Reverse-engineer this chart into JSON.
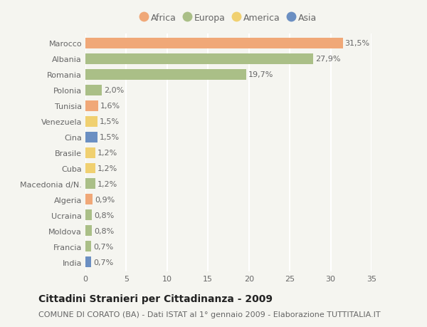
{
  "countries": [
    "Marocco",
    "Albania",
    "Romania",
    "Polonia",
    "Tunisia",
    "Venezuela",
    "Cina",
    "Brasile",
    "Cuba",
    "Macedonia d/N.",
    "Algeria",
    "Ucraina",
    "Moldova",
    "Francia",
    "India"
  ],
  "values": [
    31.5,
    27.9,
    19.7,
    2.0,
    1.6,
    1.5,
    1.5,
    1.2,
    1.2,
    1.2,
    0.9,
    0.8,
    0.8,
    0.7,
    0.7
  ],
  "labels": [
    "31,5%",
    "27,9%",
    "19,7%",
    "2,0%",
    "1,6%",
    "1,5%",
    "1,5%",
    "1,2%",
    "1,2%",
    "1,2%",
    "0,9%",
    "0,8%",
    "0,8%",
    "0,7%",
    "0,7%"
  ],
  "continents": [
    "Africa",
    "Europa",
    "Europa",
    "Europa",
    "Africa",
    "America",
    "Asia",
    "America",
    "America",
    "Europa",
    "Africa",
    "Europa",
    "Europa",
    "Europa",
    "Asia"
  ],
  "continent_colors": {
    "Africa": "#F0A878",
    "Europa": "#AABF87",
    "America": "#F0D070",
    "Asia": "#6B8FC2"
  },
  "legend_order": [
    "Africa",
    "Europa",
    "America",
    "Asia"
  ],
  "title": "Cittadini Stranieri per Cittadinanza - 2009",
  "subtitle": "COMUNE DI CORATO (BA) - Dati ISTAT al 1° gennaio 2009 - Elaborazione TUTTITALIA.IT",
  "xlim": [
    0,
    35
  ],
  "xticks": [
    0,
    5,
    10,
    15,
    20,
    25,
    30,
    35
  ],
  "background_color": "#f5f5f0",
  "grid_color": "#ffffff",
  "bar_height": 0.68,
  "title_fontsize": 10,
  "subtitle_fontsize": 8,
  "tick_fontsize": 8,
  "label_fontsize": 8,
  "legend_fontsize": 9
}
